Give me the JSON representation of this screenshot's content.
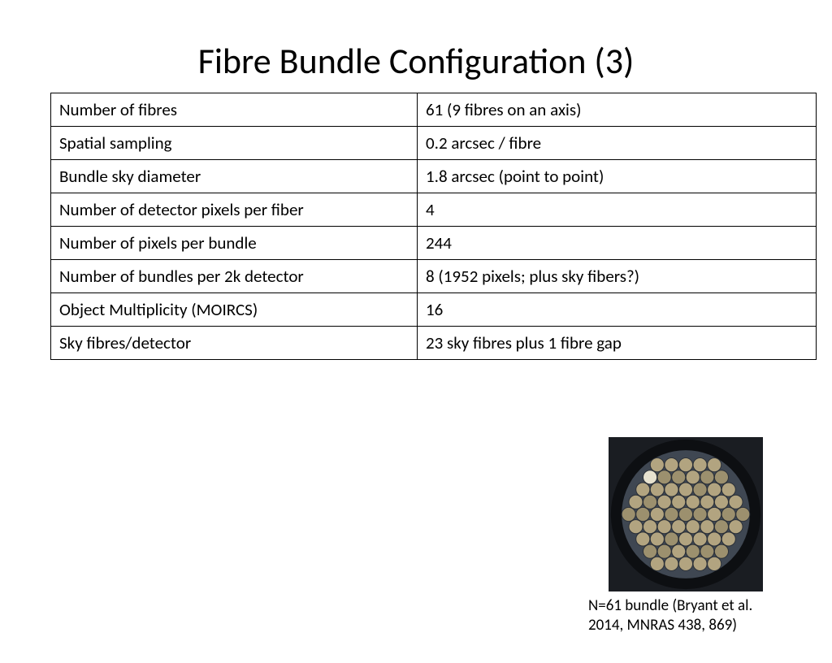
{
  "title": "Fibre Bundle Configuration (3)",
  "table": {
    "rows": [
      {
        "label": "Number of fibres",
        "value": "61 (9 fibres on an axis)"
      },
      {
        "label": "Spatial sampling",
        "value": "0.2 arcsec / fibre"
      },
      {
        "label": "Bundle sky diameter",
        "value": "1.8 arcsec  (point to point)"
      },
      {
        "label": "Number of detector pixels per fiber",
        "value": "4"
      },
      {
        "label": "Number of pixels per bundle",
        "value": "244"
      },
      {
        "label": "Number of bundles per 2k detector",
        "value": "8 (1952 pixels; plus sky fibers?)"
      },
      {
        "label": "Object Multiplicity (MOIRCS)",
        "value": "16"
      },
      {
        "label": "Sky fibres/detector",
        "value": "23 sky fibres plus 1 fibre gap"
      }
    ],
    "border_color": "#000000",
    "cell_fontsize": 21
  },
  "figure": {
    "caption": "N=61 bundle (Bryant et al. 2014, MNRAS 438, 869)",
    "bundle": {
      "n_fibres": 61,
      "rings": [
        1,
        6,
        12,
        18,
        24
      ],
      "fibre_radius": 9,
      "ring_step": 18.5,
      "frame_fill": "#1a1d22",
      "outer_ring_stroke": "#0d0f12",
      "outer_ring_width": 14,
      "inner_bg": "#3f4752",
      "fibre_fill": "#b2a480",
      "fibre_fill_alt": "#9c906e",
      "fibre_highlight": "#e7e2cf",
      "fibre_stroke": "#2a2f36",
      "fibre_stroke_width": 1,
      "highlight_index": 18
    }
  },
  "colors": {
    "background": "#ffffff",
    "text": "#000000"
  },
  "typography": {
    "title_fontsize": 44,
    "caption_fontsize": 19,
    "font_family": "Calibri"
  }
}
